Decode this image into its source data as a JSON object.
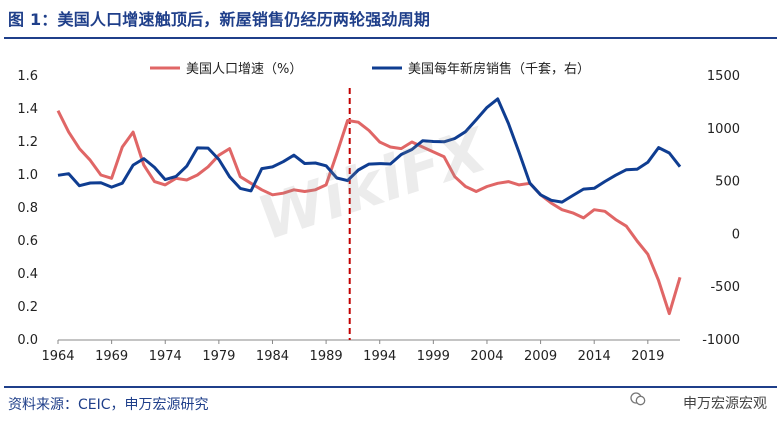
{
  "header": {
    "title": "图 1：美国人口增速触顶后，新屋销售仍经历两轮强劲周期"
  },
  "footer": {
    "source": "资料来源：CEIC，申万宏源研究",
    "brand": "申万宏源宏观"
  },
  "watermark": "WikiFX",
  "chart_data": {
    "type": "line",
    "x": [
      1964,
      1965,
      1966,
      1967,
      1968,
      1969,
      1970,
      1971,
      1972,
      1973,
      1974,
      1975,
      1976,
      1977,
      1978,
      1979,
      1980,
      1981,
      1982,
      1983,
      1984,
      1985,
      1986,
      1987,
      1988,
      1989,
      1990,
      1991,
      1992,
      1993,
      1994,
      1995,
      1996,
      1997,
      1998,
      1999,
      2000,
      2001,
      2002,
      2003,
      2004,
      2005,
      2006,
      2007,
      2008,
      2009,
      2010,
      2011,
      2012,
      2013,
      2014,
      2015,
      2016,
      2017,
      2018,
      2019,
      2020,
      2021,
      2022
    ],
    "series": [
      {
        "name": "美国人口增速（%）",
        "axis": "left",
        "color": "#e06666",
        "values": [
          1.39,
          1.26,
          1.16,
          1.09,
          1.0,
          0.98,
          1.17,
          1.26,
          1.06,
          0.96,
          0.94,
          0.98,
          0.97,
          1.0,
          1.05,
          1.12,
          1.16,
          0.99,
          0.95,
          0.91,
          0.88,
          0.89,
          0.91,
          0.9,
          0.91,
          0.94,
          1.13,
          1.33,
          1.32,
          1.27,
          1.2,
          1.17,
          1.16,
          1.2,
          1.17,
          1.14,
          1.11,
          0.99,
          0.93,
          0.9,
          0.93,
          0.95,
          0.96,
          0.94,
          0.95,
          0.88,
          0.83,
          0.79,
          0.77,
          0.74,
          0.79,
          0.78,
          0.73,
          0.69,
          0.6,
          0.52,
          0.36,
          0.16,
          0.38
        ]
      },
      {
        "name": "美国每年新房销售（千套，右）",
        "axis": "right",
        "color": "#0f3d91",
        "values": [
          560,
          575,
          461,
          487,
          490,
          448,
          485,
          656,
          718,
          634,
          519,
          549,
          646,
          819,
          817,
          709,
          545,
          436,
          412,
          623,
          639,
          688,
          750,
          671,
          676,
          650,
          534,
          509,
          610,
          666,
          670,
          667,
          757,
          804,
          886,
          880,
          877,
          908,
          973,
          1086,
          1203,
          1283,
          1051,
          776,
          485,
          375,
          323,
          306,
          368,
          429,
          437,
          501,
          561,
          613,
          617,
          683,
          822,
          771,
          641
        ]
      }
    ],
    "y_left": {
      "ylim": [
        0,
        1.6
      ],
      "ticks": [
        "0.0",
        "0.2",
        "0.4",
        "0.6",
        "0.8",
        "1.0",
        "1.2",
        "1.4",
        "1.6"
      ]
    },
    "y_right": {
      "ylim": [
        -1000,
        1500
      ],
      "ticks": [
        "-1000",
        "-500",
        "0",
        "500",
        "1000",
        "1500"
      ]
    },
    "x_ticks": [
      "1964",
      "1969",
      "1974",
      "1979",
      "1984",
      "1989",
      "1994",
      "1999",
      "2004",
      "2009",
      "2014",
      "2019"
    ],
    "reference_line": {
      "x": 1991.2,
      "style": "dashed",
      "color": "#c00000"
    },
    "legend_position": "top-center"
  }
}
